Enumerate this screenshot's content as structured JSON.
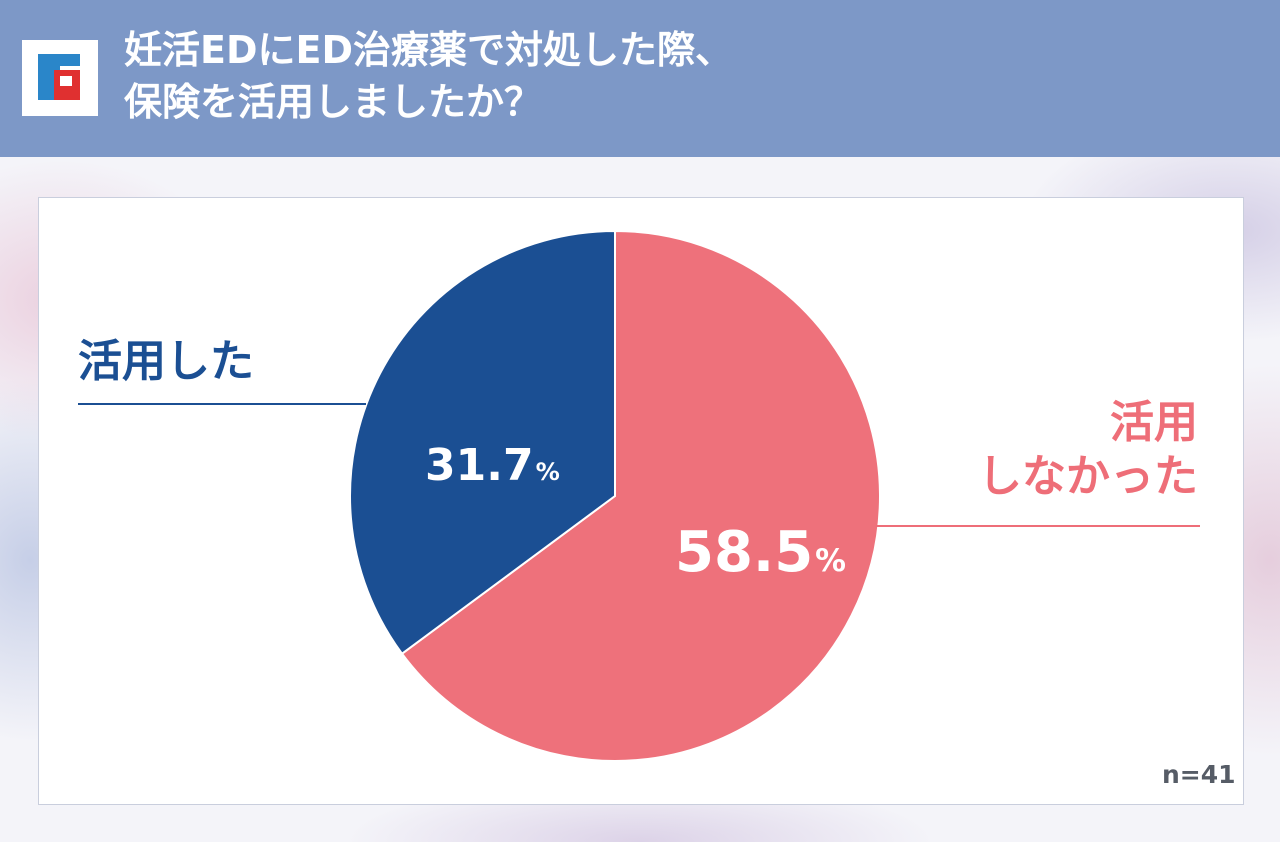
{
  "header": {
    "title_line1": "妊活EDにED治療薬で対処した際、",
    "title_line2": "保険を活用しましたか？",
    "logo_icon": "brand-logo-icon",
    "background_color": "#7d98c7"
  },
  "chart_data": {
    "type": "pie",
    "title": "妊活EDにED治療薬で対処した際、保険を活用しましたか？",
    "slices": [
      {
        "label": "活用しなかった",
        "label_line1": "活用",
        "label_line2": "しなかった",
        "value": 58.5,
        "value_text": "58.5",
        "color": "#ee717b"
      },
      {
        "label": "活用した",
        "value": 31.7,
        "value_text": "31.7",
        "color": "#1b4f93"
      }
    ],
    "unit": "%",
    "sample_size": "n=41",
    "start": "12 o'clock",
    "direction": "clockwise",
    "normalized_to_full_circle": true
  }
}
